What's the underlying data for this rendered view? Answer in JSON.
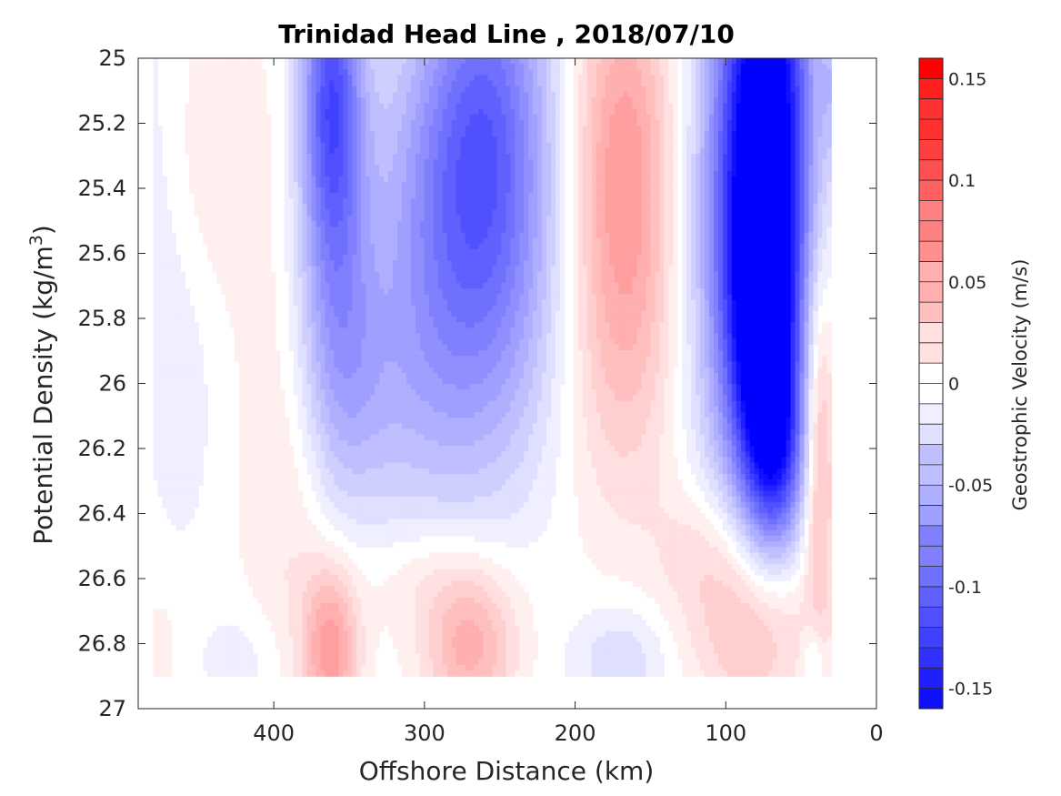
{
  "chart_data": {
    "type": "contour",
    "title": "Trinidad Head Line , 2018/07/10",
    "xlabel": "Offshore Distance (km)",
    "ylabel": "Potential Density (kg/m",
    "ylabel_sup": "3",
    "ylabel_close": ")",
    "xlim": [
      490,
      0
    ],
    "ylim": [
      25,
      27
    ],
    "x_reversed": true,
    "y_reversed": true,
    "xticks": [
      400,
      300,
      200,
      100,
      0
    ],
    "yticks": [
      25,
      25.2,
      25.4,
      25.6,
      25.8,
      26,
      26.2,
      26.4,
      26.6,
      26.8,
      27
    ],
    "xtick_labels": [
      "400",
      "300",
      "200",
      "100",
      "0"
    ],
    "ytick_labels": [
      "25",
      "25.2",
      "25.4",
      "25.6",
      "25.8",
      "26",
      "26.2",
      "26.4",
      "26.6",
      "26.8",
      "27"
    ],
    "colorbar": {
      "label": "Geostrophic Velocity (m/s)",
      "range": [
        -0.16,
        0.16
      ],
      "ticks": [
        0.15,
        0.1,
        0.05,
        0,
        -0.05,
        -0.1,
        -0.15
      ],
      "tick_labels": [
        "0.15",
        "0.1",
        "0.05",
        "0",
        "-0.05",
        "-0.1",
        "-0.15"
      ],
      "level_step": 0.01,
      "negative_color": "#0000ff",
      "positive_color": "#ff0000",
      "zero_color": "#ffffff"
    },
    "data_extent": {
      "x": [
        480,
        30
      ],
      "y": [
        25,
        26.9
      ]
    },
    "features": [
      {
        "x": 476,
        "y": 25.35,
        "v": -0.012,
        "sx": 13,
        "sy": 0.55
      },
      {
        "x": 458,
        "y": 26.0,
        "v": -0.01,
        "sx": 14,
        "sy": 0.35
      },
      {
        "x": 440,
        "y": 25.3,
        "v": 0.012,
        "sx": 35,
        "sy": 0.35
      },
      {
        "x": 420,
        "y": 26.85,
        "v": -0.012,
        "sx": 20,
        "sy": 0.12
      },
      {
        "x": 475,
        "y": 26.82,
        "v": 0.01,
        "sx": 9,
        "sy": 0.14
      },
      {
        "x": 362,
        "y": 25.08,
        "v": -0.09,
        "sx": 14,
        "sy": 0.35
      },
      {
        "x": 360,
        "y": 25.6,
        "v": -0.045,
        "sx": 18,
        "sy": 0.45
      },
      {
        "x": 350,
        "y": 25.95,
        "v": -0.02,
        "sx": 22,
        "sy": 0.3
      },
      {
        "x": 258,
        "y": 25.15,
        "v": -0.075,
        "sx": 30,
        "sy": 0.45
      },
      {
        "x": 255,
        "y": 25.75,
        "v": -0.045,
        "sx": 38,
        "sy": 0.45
      },
      {
        "x": 300,
        "y": 25.5,
        "v": -0.035,
        "sx": 30,
        "sy": 0.45
      },
      {
        "x": 320,
        "y": 26.1,
        "v": -0.018,
        "sx": 40,
        "sy": 0.28
      },
      {
        "x": 168,
        "y": 25.3,
        "v": 0.06,
        "sx": 25,
        "sy": 0.45
      },
      {
        "x": 170,
        "y": 25.95,
        "v": 0.025,
        "sx": 32,
        "sy": 0.4
      },
      {
        "x": 72,
        "y": 25.15,
        "v": -0.165,
        "sx": 20,
        "sy": 0.55
      },
      {
        "x": 75,
        "y": 25.85,
        "v": -0.12,
        "sx": 15,
        "sy": 0.35
      },
      {
        "x": 95,
        "y": 25.6,
        "v": -0.06,
        "sx": 25,
        "sy": 0.6
      },
      {
        "x": 66,
        "y": 26.2,
        "v": -0.08,
        "sx": 13,
        "sy": 0.22
      },
      {
        "x": 30,
        "y": 25.08,
        "v": -0.025,
        "sx": 5,
        "sy": 0.18
      },
      {
        "x": 38,
        "y": 26.2,
        "v": 0.05,
        "sx": 7,
        "sy": 0.38
      },
      {
        "x": 390,
        "y": 26.3,
        "v": 0.018,
        "sx": 22,
        "sy": 0.5
      },
      {
        "x": 362,
        "y": 26.82,
        "v": 0.06,
        "sx": 13,
        "sy": 0.18
      },
      {
        "x": 270,
        "y": 26.82,
        "v": 0.05,
        "sx": 22,
        "sy": 0.15
      },
      {
        "x": 290,
        "y": 26.6,
        "v": 0.018,
        "sx": 35,
        "sy": 0.12
      },
      {
        "x": 170,
        "y": 26.85,
        "v": -0.025,
        "sx": 22,
        "sy": 0.12
      },
      {
        "x": 85,
        "y": 26.75,
        "v": 0.045,
        "sx": 28,
        "sy": 0.2
      },
      {
        "x": 115,
        "y": 26.5,
        "v": 0.02,
        "sx": 22,
        "sy": 0.15
      },
      {
        "x": 42,
        "y": 26.85,
        "v": -0.025,
        "sx": 5,
        "sy": 0.08
      }
    ]
  }
}
